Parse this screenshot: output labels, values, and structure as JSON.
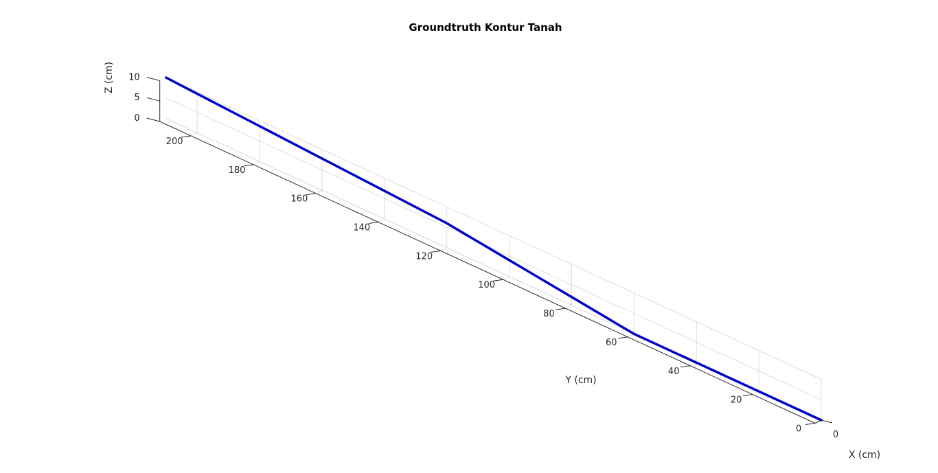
{
  "chart_data": {
    "type": "line",
    "title": "Groundtruth Kontur Tanah",
    "xlabel": "X (cm)",
    "ylabel": "Y (cm)",
    "zlabel": "Z (cm)",
    "xlim": [
      0,
      1
    ],
    "ylim": [
      0,
      210
    ],
    "zlim": [
      0,
      10
    ],
    "x_ticks": [
      "0"
    ],
    "y_ticks": [
      "0",
      "20",
      "40",
      "60",
      "80",
      "100",
      "120",
      "140",
      "160",
      "180",
      "200"
    ],
    "z_ticks": [
      "0",
      "5",
      "10"
    ],
    "grid": true,
    "series": [
      {
        "x": [
          0,
          0,
          0,
          0
        ],
        "y": [
          0,
          60,
          120,
          210
        ],
        "z": [
          0,
          0,
          6,
          10
        ],
        "color": "#0000c8"
      }
    ]
  }
}
